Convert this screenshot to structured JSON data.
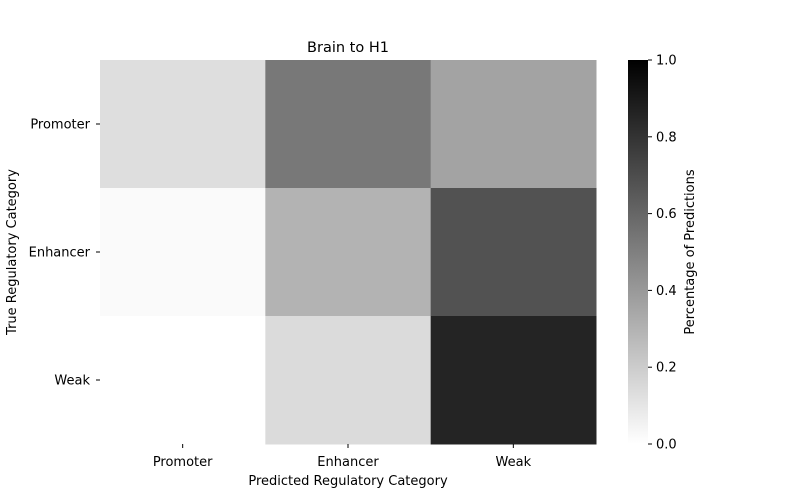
{
  "chart_data": {
    "type": "heatmap",
    "title": "Brain to H1",
    "xlabel": "Predicted Regulatory Category",
    "ylabel": "True Regulatory Category",
    "x_categories": [
      "Promoter",
      "Enhancer",
      "Weak"
    ],
    "y_categories": [
      "Promoter",
      "Enhancer",
      "Weak"
    ],
    "values": [
      [
        0.13,
        0.53,
        0.36
      ],
      [
        0.02,
        0.3,
        0.68
      ],
      [
        0.0,
        0.14,
        0.86
      ]
    ],
    "colorbar": {
      "label": "Percentage of Predictions",
      "range": [
        0.0,
        1.0
      ],
      "ticks": [
        "0.0",
        "0.2",
        "0.4",
        "0.6",
        "0.8",
        "1.0"
      ],
      "colormap": "grayscale: 0 = white, 1 = black"
    },
    "grid": false
  }
}
